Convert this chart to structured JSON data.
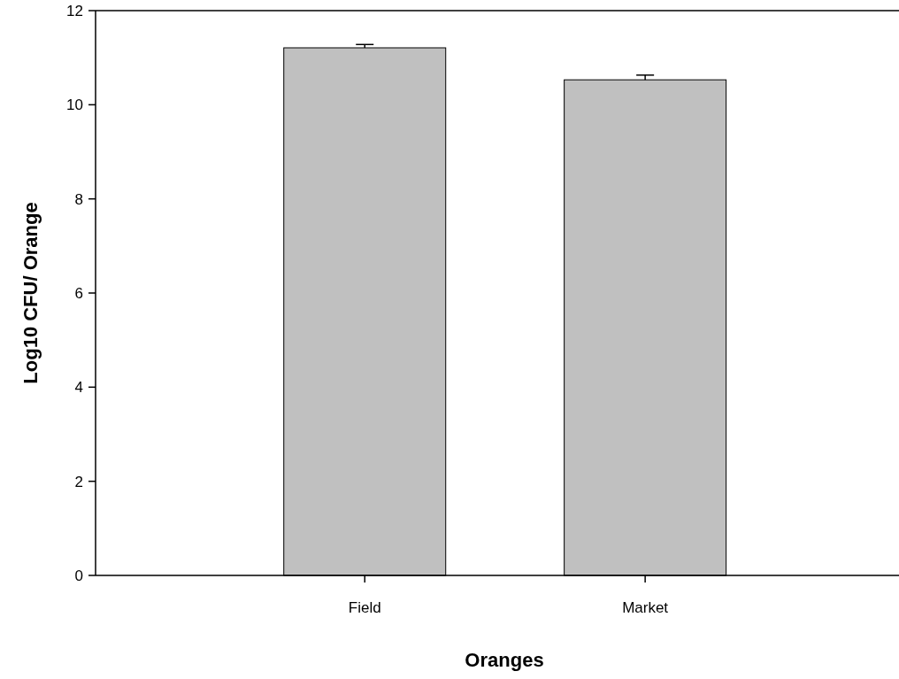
{
  "chart_data": {
    "type": "bar",
    "xlabel": "Oranges",
    "ylabel": "Log10 CFU/ Orange",
    "categories": [
      "Field",
      "Market"
    ],
    "values": [
      11.21,
      10.53
    ],
    "errors": [
      [
        11.21,
        11.28
      ],
      [
        10.53,
        10.63
      ]
    ],
    "color": "#c0c0c0",
    "ylim": [
      0,
      12
    ],
    "yticks": [
      0,
      2,
      4,
      6,
      8,
      10,
      12
    ],
    "grid": false
  }
}
